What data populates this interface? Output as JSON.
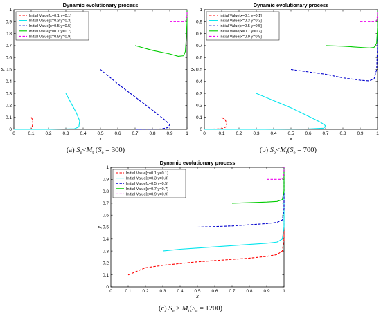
{
  "chart_data": [
    {
      "id": "a",
      "type": "line",
      "title": "Dynamic evolutionary process",
      "xlabel": "x",
      "ylabel": "y",
      "xlim": [
        0,
        1
      ],
      "ylim": [
        0,
        1
      ],
      "xticks": [
        "0",
        "0.1",
        "0.2",
        "0.3",
        "0.4",
        "0.5",
        "0.6",
        "0.7",
        "0.8",
        "0.9",
        "1"
      ],
      "yticks": [
        "0",
        "0.1",
        "0.2",
        "0.3",
        "0.4",
        "0.5",
        "0.6",
        "0.7",
        "0.8",
        "0.9",
        "1"
      ],
      "grid": false,
      "legend_position": "top-left",
      "caption": {
        "tag": "(a)",
        "lhs": "S",
        "lhs_sub": "e",
        "rel": "<",
        "rhs": "M",
        "rhs_sub": "t",
        "paren_open": " (",
        "param": "S",
        "param_sub": "e",
        "eq": " = 300)"
      },
      "series": [
        {
          "name": "Initial Value[x=0.1 y=0.1]",
          "color": "#ff0000",
          "dash": "dash",
          "points": [
            [
              0.1,
              0.1
            ],
            [
              0.108,
              0.08
            ],
            [
              0.11,
              0.05
            ],
            [
              0.105,
              0.02
            ],
            [
              0.1,
              0
            ]
          ]
        },
        {
          "name": "Initial Value[x=0.3 y=0.3]",
          "color": "#00e5ee",
          "dash": "solid",
          "points": [
            [
              0.3,
              0.3
            ],
            [
              0.33,
              0.22
            ],
            [
              0.36,
              0.14
            ],
            [
              0.38,
              0.07
            ],
            [
              0.375,
              0.02
            ],
            [
              0.35,
              0.005
            ],
            [
              0.2,
              0
            ],
            [
              0.0,
              0
            ]
          ]
        },
        {
          "name": "Initial Value[x=0.5 y=0.5]",
          "color": "#0000cd",
          "dash": "dash",
          "points": [
            [
              0.5,
              0.5
            ],
            [
              0.6,
              0.38
            ],
            [
              0.7,
              0.27
            ],
            [
              0.8,
              0.16
            ],
            [
              0.87,
              0.08
            ],
            [
              0.9,
              0.04
            ],
            [
              0.89,
              0.015
            ],
            [
              0.85,
              0.003
            ],
            [
              0.7,
              0
            ]
          ]
        },
        {
          "name": "Initial Value[x=0.7 y=0.7]",
          "color": "#00cc00",
          "dash": "solid",
          "points": [
            [
              0.7,
              0.7
            ],
            [
              0.8,
              0.66
            ],
            [
              0.9,
              0.63
            ],
            [
              0.95,
              0.61
            ],
            [
              0.98,
              0.615
            ],
            [
              0.99,
              0.65
            ],
            [
              0.995,
              0.75
            ],
            [
              1.0,
              0.9
            ],
            [
              1.0,
              1.0
            ]
          ]
        },
        {
          "name": "Initial Value[x=0.9 y=0.9]",
          "color": "#ee00ee",
          "dash": "dash",
          "points": [
            [
              0.9,
              0.9
            ],
            [
              0.95,
              0.9
            ],
            [
              0.98,
              0.9
            ],
            [
              0.995,
              0.91
            ],
            [
              1.0,
              0.95
            ],
            [
              1.0,
              1.0
            ]
          ]
        }
      ]
    },
    {
      "id": "b",
      "type": "line",
      "title": "Dynamic evolutionary process",
      "xlabel": "x",
      "ylabel": "y",
      "xlim": [
        0,
        1
      ],
      "ylim": [
        0,
        1
      ],
      "xticks": [
        "0",
        "0.1",
        "0.2",
        "0.3",
        "0.4",
        "0.5",
        "0.6",
        "0.7",
        "0.8",
        "0.9",
        "1"
      ],
      "yticks": [
        "0",
        "0.1",
        "0.2",
        "0.3",
        "0.4",
        "0.5",
        "0.6",
        "0.7",
        "0.8",
        "0.9",
        "1"
      ],
      "grid": false,
      "legend_position": "top-left",
      "caption": {
        "tag": "(b)",
        "lhs": "S",
        "lhs_sub": "e",
        "rel": "<",
        "rhs": "M",
        "rhs_sub": "t",
        "paren_open": "(",
        "param": "S",
        "param_sub": "e",
        "eq": " = 700)"
      },
      "series": [
        {
          "name": "Initial Value[x=0.1 y=0.1]",
          "color": "#ff0000",
          "dash": "dash",
          "points": [
            [
              0.1,
              0.1
            ],
            [
              0.12,
              0.08
            ],
            [
              0.13,
              0.05
            ],
            [
              0.125,
              0.02
            ],
            [
              0.1,
              0.005
            ],
            [
              0.0,
              0
            ]
          ]
        },
        {
          "name": "Initial Value[x=0.3 y=0.3]",
          "color": "#00e5ee",
          "dash": "solid",
          "points": [
            [
              0.3,
              0.3
            ],
            [
              0.4,
              0.24
            ],
            [
              0.5,
              0.18
            ],
            [
              0.6,
              0.11
            ],
            [
              0.67,
              0.06
            ],
            [
              0.7,
              0.03
            ],
            [
              0.69,
              0.01
            ],
            [
              0.6,
              0.003
            ],
            [
              0.3,
              0
            ],
            [
              0.0,
              0
            ]
          ]
        },
        {
          "name": "Initial Value[x=0.5 y=0.5]",
          "color": "#0000cd",
          "dash": "dash",
          "points": [
            [
              0.5,
              0.5
            ],
            [
              0.6,
              0.48
            ],
            [
              0.7,
              0.46
            ],
            [
              0.8,
              0.43
            ],
            [
              0.9,
              0.41
            ],
            [
              0.95,
              0.405
            ],
            [
              0.98,
              0.42
            ],
            [
              0.995,
              0.5
            ],
            [
              1.0,
              0.7
            ],
            [
              1.0,
              1.0
            ]
          ]
        },
        {
          "name": "Initial Value[x=0.7 y=0.7]",
          "color": "#00cc00",
          "dash": "solid",
          "points": [
            [
              0.7,
              0.7
            ],
            [
              0.8,
              0.695
            ],
            [
              0.9,
              0.685
            ],
            [
              0.95,
              0.68
            ],
            [
              0.98,
              0.685
            ],
            [
              0.995,
              0.72
            ],
            [
              1.0,
              0.85
            ],
            [
              1.0,
              1.0
            ]
          ]
        },
        {
          "name": "Initial Value[x=0.9 y=0.9]",
          "color": "#ee00ee",
          "dash": "dash",
          "points": [
            [
              0.9,
              0.9
            ],
            [
              0.95,
              0.9
            ],
            [
              0.98,
              0.9
            ],
            [
              0.995,
              0.91
            ],
            [
              1.0,
              0.95
            ],
            [
              1.0,
              1.0
            ]
          ]
        }
      ]
    },
    {
      "id": "c",
      "type": "line",
      "title": "Dynamic evolutionary process",
      "xlabel": "x",
      "ylabel": "y",
      "xlim": [
        0,
        1
      ],
      "ylim": [
        0,
        1
      ],
      "xticks": [
        "0",
        "0.1",
        "0.2",
        "0.3",
        "0.4",
        "0.5",
        "0.6",
        "0.7",
        "0.8",
        "0.9",
        "1"
      ],
      "yticks": [
        "0",
        "0.1",
        "0.2",
        "0.3",
        "0.4",
        "0.5",
        "0.6",
        "0.7",
        "0.8",
        "0.9",
        "1"
      ],
      "grid": false,
      "legend_position": "top-left",
      "caption": {
        "tag": "(c)",
        "lhs": "S",
        "lhs_sub": "e",
        "rel": " > ",
        "rhs": "M",
        "rhs_sub": "t",
        "paren_open": "(",
        "param": "S",
        "param_sub": "e",
        "eq": " = 1200)"
      },
      "series": [
        {
          "name": "Initial Value[x=0.1 y=0.1]",
          "color": "#ff0000",
          "dash": "dash",
          "points": [
            [
              0.1,
              0.1
            ],
            [
              0.2,
              0.16
            ],
            [
              0.3,
              0.18
            ],
            [
              0.4,
              0.195
            ],
            [
              0.5,
              0.21
            ],
            [
              0.6,
              0.22
            ],
            [
              0.7,
              0.23
            ],
            [
              0.8,
              0.24
            ],
            [
              0.9,
              0.255
            ],
            [
              0.96,
              0.27
            ],
            [
              0.99,
              0.3
            ],
            [
              1.0,
              0.4
            ],
            [
              1.0,
              1.0
            ]
          ]
        },
        {
          "name": "Initial Value[x=0.3 y=0.3]",
          "color": "#00e5ee",
          "dash": "solid",
          "points": [
            [
              0.3,
              0.3
            ],
            [
              0.4,
              0.315
            ],
            [
              0.5,
              0.325
            ],
            [
              0.6,
              0.335
            ],
            [
              0.7,
              0.345
            ],
            [
              0.8,
              0.355
            ],
            [
              0.9,
              0.365
            ],
            [
              0.96,
              0.375
            ],
            [
              0.99,
              0.4
            ],
            [
              1.0,
              0.5
            ],
            [
              1.0,
              1.0
            ]
          ]
        },
        {
          "name": "Initial Value[x=0.5 y=0.5]",
          "color": "#0000cd",
          "dash": "dash",
          "points": [
            [
              0.5,
              0.5
            ],
            [
              0.6,
              0.505
            ],
            [
              0.7,
              0.51
            ],
            [
              0.8,
              0.52
            ],
            [
              0.9,
              0.53
            ],
            [
              0.96,
              0.54
            ],
            [
              0.99,
              0.56
            ],
            [
              1.0,
              0.65
            ],
            [
              1.0,
              1.0
            ]
          ]
        },
        {
          "name": "Initial Value[x=0.7 y=0.7]",
          "color": "#00cc00",
          "dash": "solid",
          "points": [
            [
              0.7,
              0.7
            ],
            [
              0.8,
              0.705
            ],
            [
              0.9,
              0.71
            ],
            [
              0.96,
              0.715
            ],
            [
              0.99,
              0.73
            ],
            [
              1.0,
              0.8
            ],
            [
              1.0,
              1.0
            ]
          ]
        },
        {
          "name": "Initial Value[x=0.9 y=0.9]",
          "color": "#ee00ee",
          "dash": "dash",
          "points": [
            [
              0.9,
              0.9
            ],
            [
              0.95,
              0.9
            ],
            [
              0.98,
              0.9
            ],
            [
              0.995,
              0.91
            ],
            [
              1.0,
              0.95
            ],
            [
              1.0,
              1.0
            ]
          ]
        }
      ]
    }
  ]
}
